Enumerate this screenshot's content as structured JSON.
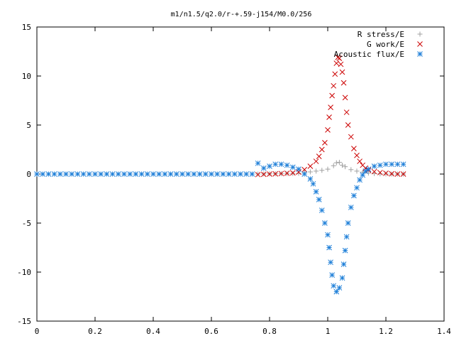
{
  "chart_data": {
    "type": "scatter",
    "title": "m1/n1.5/q2.0/r-+.59-j154/M0.0/256",
    "xlabel": "",
    "ylabel": "",
    "xlim": [
      0,
      1.4
    ],
    "ylim": [
      -15,
      15
    ],
    "x_ticks": [
      0,
      0.2,
      0.4,
      0.6,
      0.8,
      1,
      1.2,
      1.4
    ],
    "x_tick_labels": [
      "0",
      "0.2",
      "0.4",
      "0.6",
      "0.8",
      "1",
      "1.2",
      "1.4"
    ],
    "y_ticks": [
      -15,
      -10,
      -5,
      0,
      5,
      10,
      15
    ],
    "y_tick_labels": [
      "-15",
      "-10",
      "-5",
      "0",
      "5",
      "10",
      "15"
    ],
    "grid": false,
    "legend_position": "top-right",
    "series": [
      {
        "name": "R stress/E",
        "marker": "plus",
        "color": "#a0a0a0",
        "points": [
          [
            0.76,
            0.0
          ],
          [
            0.78,
            0.01
          ],
          [
            0.8,
            0.02
          ],
          [
            0.82,
            0.03
          ],
          [
            0.84,
            0.04
          ],
          [
            0.86,
            0.05
          ],
          [
            0.88,
            0.06
          ],
          [
            0.9,
            0.07
          ],
          [
            0.92,
            0.15
          ],
          [
            0.94,
            0.22
          ],
          [
            0.96,
            0.3
          ],
          [
            0.98,
            0.38
          ],
          [
            1.0,
            0.5
          ],
          [
            1.02,
            0.85
          ],
          [
            1.03,
            1.15
          ],
          [
            1.04,
            1.2
          ],
          [
            1.05,
            0.9
          ],
          [
            1.06,
            0.75
          ],
          [
            1.08,
            0.45
          ],
          [
            1.1,
            0.3
          ],
          [
            1.12,
            0.2
          ],
          [
            1.14,
            0.1
          ],
          [
            1.16,
            0.05
          ],
          [
            1.18,
            0.02
          ],
          [
            1.2,
            0.01
          ],
          [
            1.22,
            0.0
          ],
          [
            1.24,
            0.0
          ],
          [
            1.26,
            0.0
          ]
        ]
      },
      {
        "name": "G work/E",
        "marker": "cross",
        "color": "#cc0000",
        "points": [
          [
            0.76,
            -0.05
          ],
          [
            0.78,
            -0.03
          ],
          [
            0.8,
            0.0
          ],
          [
            0.82,
            0.02
          ],
          [
            0.84,
            0.05
          ],
          [
            0.86,
            0.08
          ],
          [
            0.88,
            0.12
          ],
          [
            0.9,
            0.2
          ],
          [
            0.92,
            0.45
          ],
          [
            0.94,
            0.8
          ],
          [
            0.96,
            1.3
          ],
          [
            0.97,
            1.8
          ],
          [
            0.98,
            2.5
          ],
          [
            0.99,
            3.2
          ],
          [
            1.0,
            4.5
          ],
          [
            1.005,
            5.8
          ],
          [
            1.01,
            6.8
          ],
          [
            1.015,
            8.0
          ],
          [
            1.02,
            9.0
          ],
          [
            1.025,
            10.2
          ],
          [
            1.03,
            11.3
          ],
          [
            1.035,
            11.9
          ],
          [
            1.04,
            11.8
          ],
          [
            1.045,
            11.2
          ],
          [
            1.05,
            10.4
          ],
          [
            1.055,
            9.3
          ],
          [
            1.06,
            7.8
          ],
          [
            1.065,
            6.3
          ],
          [
            1.07,
            5.0
          ],
          [
            1.08,
            3.8
          ],
          [
            1.09,
            2.6
          ],
          [
            1.1,
            1.9
          ],
          [
            1.11,
            1.3
          ],
          [
            1.12,
            0.9
          ],
          [
            1.13,
            0.6
          ],
          [
            1.14,
            0.4
          ],
          [
            1.16,
            0.25
          ],
          [
            1.18,
            0.15
          ],
          [
            1.2,
            0.08
          ],
          [
            1.22,
            0.03
          ],
          [
            1.24,
            0.0
          ],
          [
            1.26,
            0.0
          ]
        ]
      },
      {
        "name": "Acoustic flux/E",
        "marker": "star",
        "color": "#1e7fd8",
        "points": [
          [
            0.0,
            0.0
          ],
          [
            0.02,
            0.0
          ],
          [
            0.04,
            0.0
          ],
          [
            0.06,
            0.0
          ],
          [
            0.08,
            0.0
          ],
          [
            0.1,
            0.0
          ],
          [
            0.12,
            0.0
          ],
          [
            0.14,
            0.0
          ],
          [
            0.16,
            0.0
          ],
          [
            0.18,
            0.0
          ],
          [
            0.2,
            0.0
          ],
          [
            0.22,
            0.0
          ],
          [
            0.24,
            0.0
          ],
          [
            0.26,
            0.0
          ],
          [
            0.28,
            0.0
          ],
          [
            0.3,
            0.0
          ],
          [
            0.32,
            0.0
          ],
          [
            0.34,
            0.0
          ],
          [
            0.36,
            0.0
          ],
          [
            0.38,
            0.0
          ],
          [
            0.4,
            0.0
          ],
          [
            0.42,
            0.0
          ],
          [
            0.44,
            0.0
          ],
          [
            0.46,
            0.0
          ],
          [
            0.48,
            0.0
          ],
          [
            0.5,
            0.0
          ],
          [
            0.52,
            0.0
          ],
          [
            0.54,
            0.0
          ],
          [
            0.56,
            0.0
          ],
          [
            0.58,
            0.0
          ],
          [
            0.6,
            0.0
          ],
          [
            0.62,
            0.0
          ],
          [
            0.64,
            0.0
          ],
          [
            0.66,
            0.0
          ],
          [
            0.68,
            0.0
          ],
          [
            0.7,
            0.0
          ],
          [
            0.72,
            0.0
          ],
          [
            0.74,
            0.0
          ],
          [
            0.76,
            1.1
          ],
          [
            0.78,
            0.6
          ],
          [
            0.8,
            0.8
          ],
          [
            0.82,
            1.0
          ],
          [
            0.84,
            1.0
          ],
          [
            0.86,
            0.9
          ],
          [
            0.88,
            0.7
          ],
          [
            0.9,
            0.5
          ],
          [
            0.92,
            0.0
          ],
          [
            0.94,
            -0.5
          ],
          [
            0.95,
            -1.0
          ],
          [
            0.96,
            -1.8
          ],
          [
            0.97,
            -2.6
          ],
          [
            0.98,
            -3.7
          ],
          [
            0.99,
            -5.0
          ],
          [
            1.0,
            -6.2
          ],
          [
            1.005,
            -7.5
          ],
          [
            1.01,
            -9.0
          ],
          [
            1.015,
            -10.3
          ],
          [
            1.02,
            -11.4
          ],
          [
            1.03,
            -12.0
          ],
          [
            1.04,
            -11.6
          ],
          [
            1.05,
            -10.6
          ],
          [
            1.055,
            -9.2
          ],
          [
            1.06,
            -7.8
          ],
          [
            1.065,
            -6.4
          ],
          [
            1.07,
            -5.0
          ],
          [
            1.08,
            -3.4
          ],
          [
            1.09,
            -2.2
          ],
          [
            1.1,
            -1.4
          ],
          [
            1.11,
            -0.6
          ],
          [
            1.12,
            -0.1
          ],
          [
            1.13,
            0.3
          ],
          [
            1.14,
            0.5
          ],
          [
            1.16,
            0.8
          ],
          [
            1.18,
            0.9
          ],
          [
            1.2,
            1.0
          ],
          [
            1.22,
            1.0
          ],
          [
            1.24,
            1.0
          ],
          [
            1.26,
            1.0
          ]
        ]
      }
    ]
  }
}
